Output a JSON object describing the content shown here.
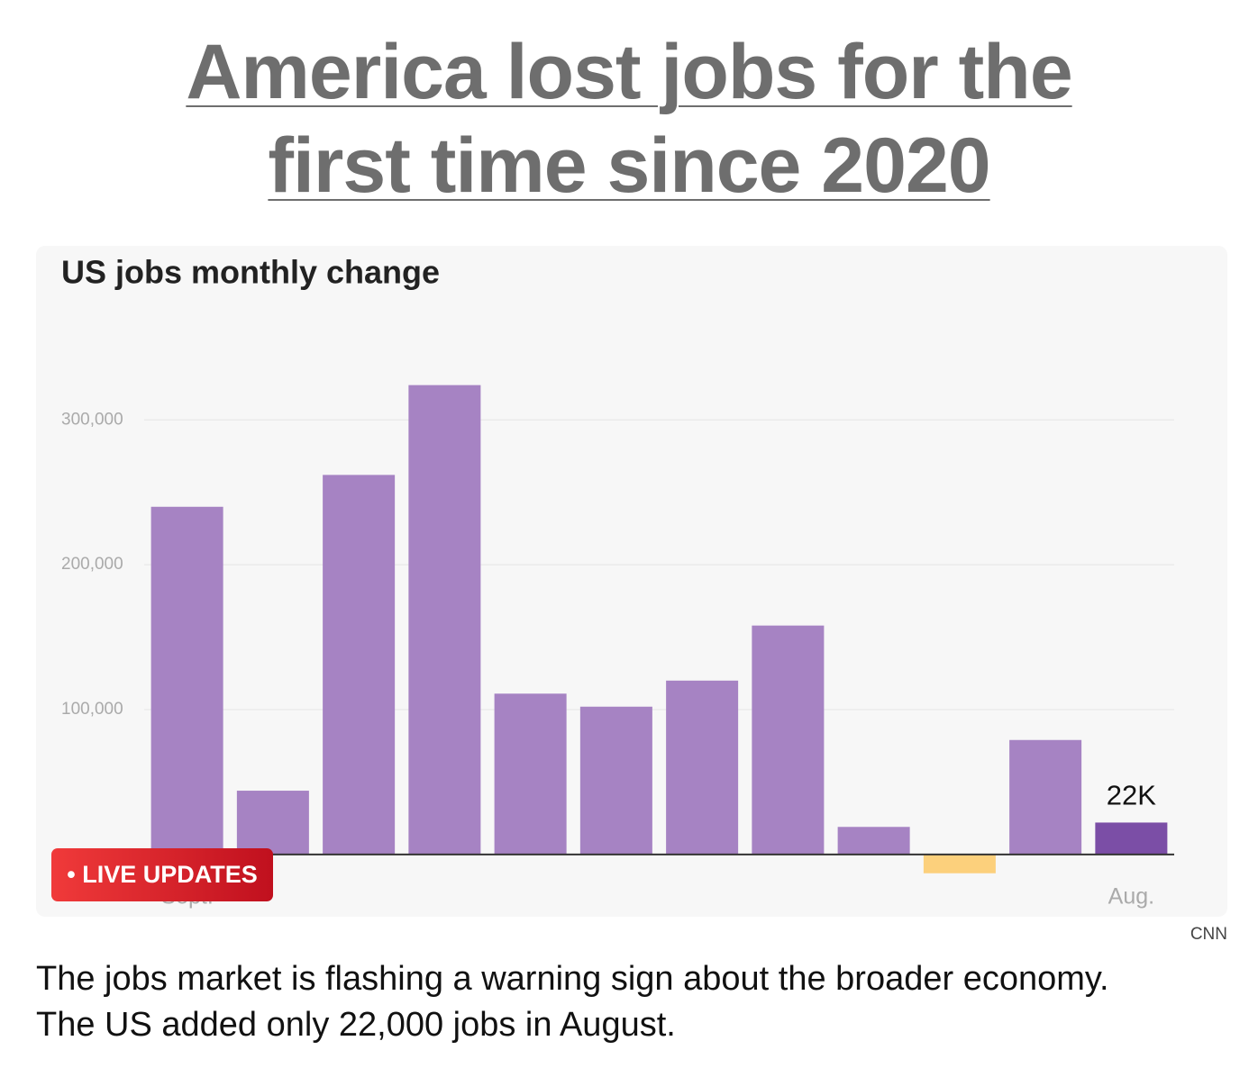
{
  "headline": "America lost jobs for the first time since 2020",
  "chart_data": {
    "type": "bar",
    "title": "US jobs monthly change",
    "categories": [
      "Sept.",
      null,
      null,
      null,
      null,
      null,
      null,
      null,
      null,
      null,
      null,
      "Aug."
    ],
    "values": [
      240000,
      44000,
      262000,
      324000,
      111000,
      102000,
      120000,
      158000,
      19000,
      -13000,
      79000,
      22000
    ],
    "value_labels": [
      null,
      null,
      null,
      null,
      null,
      null,
      null,
      null,
      null,
      null,
      null,
      "22K"
    ],
    "colors": [
      "#a683c3",
      "#a683c3",
      "#a683c3",
      "#a683c3",
      "#a683c3",
      "#a683c3",
      "#a683c3",
      "#a683c3",
      "#a683c3",
      "#fcd07c",
      "#a683c3",
      "#7b4ea6"
    ],
    "ylim": [
      -20000,
      330000
    ],
    "yticks": [
      {
        "value": 100000,
        "label": "100,000"
      },
      {
        "value": 200000,
        "label": "200,000"
      },
      {
        "value": 300000,
        "label": "300,000"
      }
    ],
    "grid": true
  },
  "badge": "LIVE UPDATES",
  "source": "CNN",
  "caption": "The jobs market is flashing a warning sign about the broader economy. The US added only 22,000 jobs in August."
}
